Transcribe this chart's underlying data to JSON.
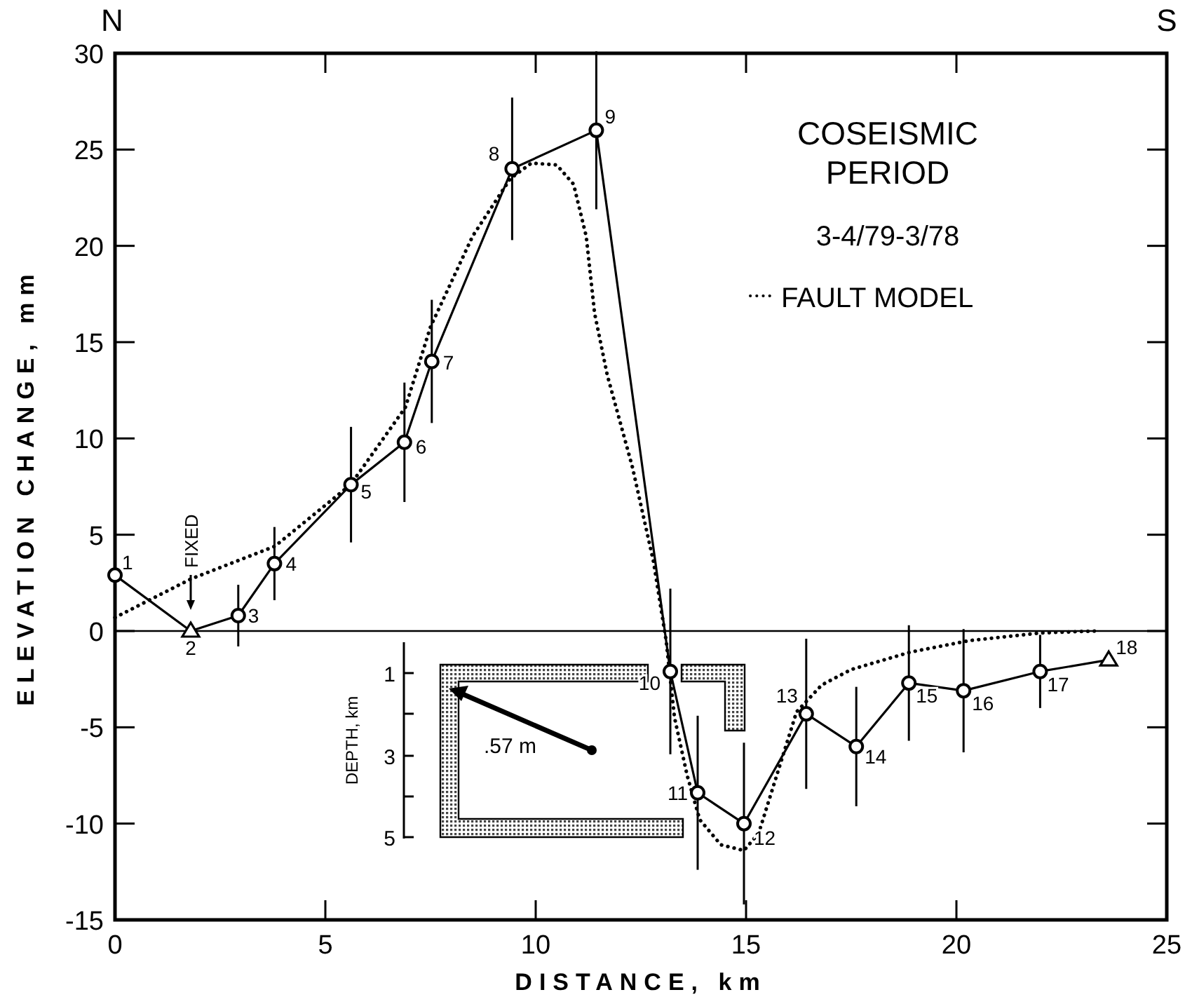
{
  "chart_data": {
    "type": "line",
    "title": "COSEISMIC PERIOD",
    "subtitle": "3-4/79-3/78",
    "xlabel": "DISTANCE, km",
    "ylabel": "ELEVATION CHANGE, mm",
    "xlim": [
      0,
      25
    ],
    "xticks": [
      0,
      5,
      10,
      15,
      20,
      25
    ],
    "ylim": [
      -15,
      30
    ],
    "yticks": [
      -15,
      -10,
      -5,
      0,
      5,
      10,
      15,
      20,
      25,
      30
    ],
    "grid": false,
    "legend": "top right",
    "ref_lines": [
      {
        "axis": "y",
        "value": 0
      }
    ],
    "series": [
      {
        "name": "FAULT MODEL",
        "type": "line",
        "line_style": "dotted",
        "marker": "none",
        "color": "#000000",
        "x": [
          0,
          1.8,
          3.8,
          5.6,
          6.9,
          7.5,
          8.5,
          9.4,
          9.9,
          10.5,
          10.9,
          11.2,
          11.4,
          11.7,
          12.3,
          12.8,
          13.1,
          13.3,
          13.6,
          13.9,
          14.4,
          14.95,
          15.3,
          15.6,
          16.2,
          16.8,
          17.5,
          18.9,
          20.3,
          22,
          23.3
        ],
        "values": [
          0.7,
          2.7,
          4.4,
          7.6,
          11.6,
          15.8,
          20.5,
          23.5,
          24.3,
          24.2,
          23.2,
          20.5,
          16.5,
          13.3,
          8.5,
          3.6,
          -0.5,
          -4.5,
          -7.5,
          -9.8,
          -11.1,
          -11.4,
          -10.5,
          -8.4,
          -4.2,
          -2.8,
          -2.0,
          -1.1,
          -0.5,
          -0.1,
          0
        ]
      },
      {
        "line_style": "solid",
        "marker": "none",
        "color": "#000000",
        "x": [
          0,
          1.8,
          2.93,
          3.79,
          5.61,
          6.88,
          7.53,
          9.44,
          11.44,
          13.2,
          13.85,
          14.95,
          16.43,
          17.62,
          18.87,
          20.17,
          21.99,
          23.62
        ],
        "values": [
          2.9,
          0,
          0.8,
          3.5,
          7.6,
          9.8,
          14,
          24,
          26,
          -2.1,
          -8.4,
          -10,
          -4.3,
          -6,
          -2.7,
          -3.1,
          -2.1,
          -1.5
        ]
      },
      {
        "type": "scatter",
        "marker": "circle",
        "color": "#000000",
        "x": [
          0,
          2.93,
          3.79,
          5.61,
          6.88,
          7.53,
          9.44,
          11.44,
          13.2,
          13.85,
          14.95,
          16.43,
          17.62,
          18.87,
          20.17,
          21.99
        ],
        "values": [
          2.9,
          0.8,
          3.5,
          7.6,
          9.8,
          14,
          24,
          26,
          -2.1,
          -8.4,
          -10,
          -4.3,
          -6,
          -2.7,
          -3.1,
          -2.1
        ],
        "errors": [
          null,
          1.6,
          1.9,
          3,
          3.1,
          3.2,
          3.7,
          4.1,
          4.3,
          4,
          4.2,
          3.9,
          3.1,
          3,
          3.2,
          1.9
        ]
      },
      {
        "type": "scatter",
        "marker": "triangle",
        "color": "#000000",
        "x": [
          1.8,
          23.62
        ],
        "values": [
          0,
          -1.5
        ]
      }
    ],
    "annotations": [
      "N",
      "S",
      "DEPTH, km",
      "1",
      "3",
      "5",
      ".57 m",
      "FIXED",
      {
        "text": "1",
        "x": 0,
        "y": 2.9
      },
      {
        "text": "2",
        "x": 1.8,
        "y": 0
      },
      {
        "text": "3",
        "x": 2.93,
        "y": 0.8
      },
      {
        "text": "4",
        "x": 3.79,
        "y": 3.5
      },
      {
        "text": "5",
        "x": 5.61,
        "y": 7.6
      },
      {
        "text": "6",
        "x": 6.88,
        "y": 9.8
      },
      {
        "text": "7",
        "x": 7.53,
        "y": 14
      },
      {
        "text": "8",
        "x": 9.44,
        "y": 24
      },
      {
        "text": "9",
        "x": 11.44,
        "y": 26
      },
      {
        "text": "10",
        "x": 13.2,
        "y": -2.1
      },
      {
        "text": "11",
        "x": 13.85,
        "y": -8.4
      },
      {
        "text": "12",
        "x": 14.95,
        "y": -10
      },
      {
        "text": "13",
        "x": 16.43,
        "y": -4.3
      },
      {
        "text": "14",
        "x": 17.62,
        "y": -6
      },
      {
        "text": "15",
        "x": 18.87,
        "y": -2.7
      },
      {
        "text": "16",
        "x": 20.17,
        "y": -3.1
      },
      {
        "text": "17",
        "x": 21.99,
        "y": -2.1
      },
      {
        "text": "18",
        "x": 23.62,
        "y": -1.5
      }
    ]
  }
}
